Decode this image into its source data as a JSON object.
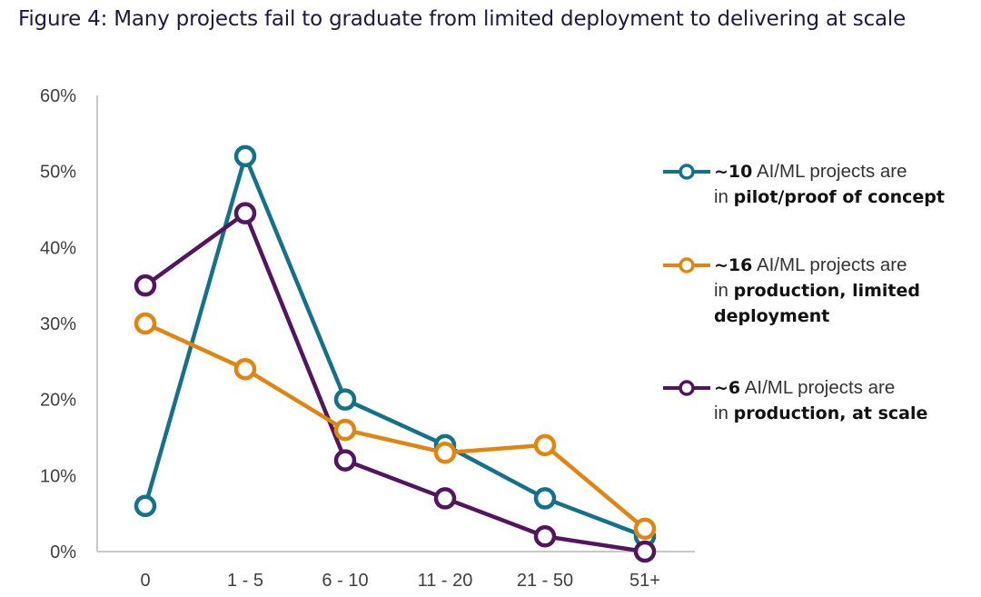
{
  "title": "Figure 4: Many projects fail to graduate from limited deployment to delivering at scale",
  "chart_data": {
    "type": "line",
    "title": "Figure 4: Many projects fail to graduate from limited deployment to delivering at scale",
    "xlabel": "",
    "ylabel": "",
    "categories": [
      "0",
      "1 - 5",
      "6 - 10",
      "11 - 20",
      "21 - 50",
      "51+"
    ],
    "yticks": [
      "0%",
      "10%",
      "20%",
      "30%",
      "40%",
      "50%",
      "60%"
    ],
    "ylim": [
      0,
      60
    ],
    "grid": false,
    "legend_position": "right",
    "series": [
      {
        "name": "~10 AI/ML projects are in pilot/proof of concept",
        "color": "#13728a",
        "values": [
          6,
          52,
          20,
          14,
          7,
          2
        ]
      },
      {
        "name": "~16 AI/ML projects are in production, limited deployment",
        "color": "#e0850f",
        "values": [
          30,
          24,
          16,
          13,
          14,
          3
        ]
      },
      {
        "name": "~6 AI/ML projects are in production, at scale",
        "color": "#52165e",
        "values": [
          35,
          44.5,
          12,
          7,
          2,
          0
        ]
      }
    ]
  },
  "legend": [
    {
      "bold_lead": "~10",
      "text_mid": " AI/ML projects are",
      "line2_prefix": "in ",
      "bold_tail": "pilot/proof of concept",
      "line3": ""
    },
    {
      "bold_lead": "~16",
      "text_mid": " AI/ML projects are",
      "line2_prefix": "in ",
      "bold_tail": "production, limited",
      "line3": "deployment"
    },
    {
      "bold_lead": "~6",
      "text_mid": " AI/ML projects are",
      "line2_prefix": "in ",
      "bold_tail": "production, at scale",
      "line3": ""
    }
  ]
}
